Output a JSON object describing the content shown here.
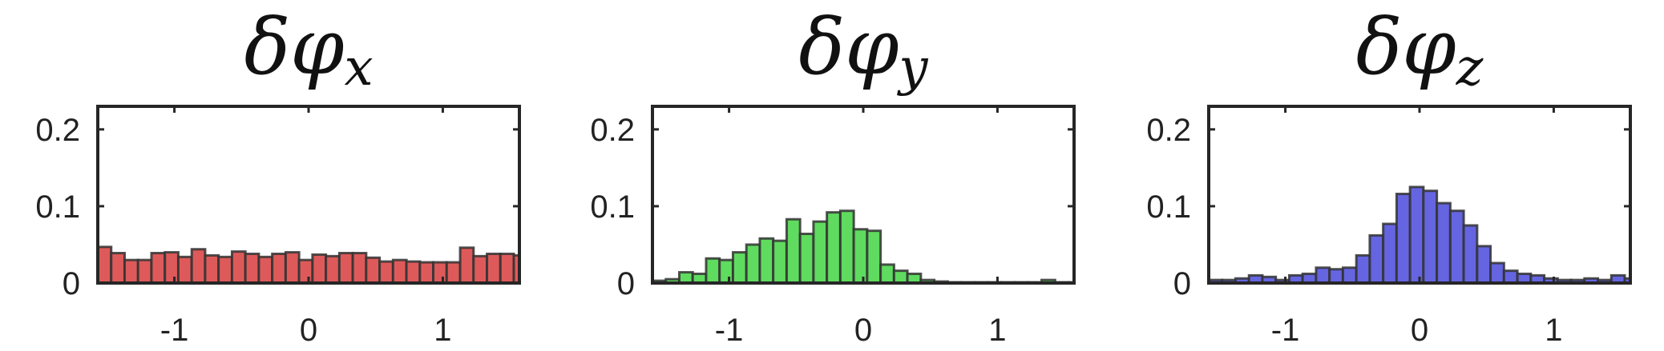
{
  "chart_data": [
    {
      "type": "bar",
      "title": "δφ",
      "title_subscript": "x",
      "color": "#de5a5a",
      "xlim": [
        -1.5708,
        1.5708
      ],
      "ylim": [
        0,
        0.23
      ],
      "xticks": [
        -1,
        0,
        1
      ],
      "xtick_labels": [
        "-1",
        "0",
        "1"
      ],
      "yticks": [
        0,
        0.1,
        0.2
      ],
      "ytick_labels": [
        "0",
        "0.1",
        "0.2"
      ],
      "bin_width": 0.1,
      "bin_start": -1.5708,
      "values": [
        0.047,
        0.039,
        0.03,
        0.03,
        0.039,
        0.04,
        0.034,
        0.044,
        0.036,
        0.034,
        0.041,
        0.038,
        0.034,
        0.038,
        0.04,
        0.03,
        0.037,
        0.035,
        0.039,
        0.039,
        0.033,
        0.028,
        0.03,
        0.028,
        0.027,
        0.027,
        0.027,
        0.046,
        0.035,
        0.038,
        0.038,
        0.036
      ]
    },
    {
      "type": "bar",
      "title": "δφ",
      "title_subscript": "y",
      "color": "#5fdb5f",
      "xlim": [
        -1.5708,
        1.5708
      ],
      "ylim": [
        0,
        0.23
      ],
      "xticks": [
        -1,
        0,
        1
      ],
      "xtick_labels": [
        "-1",
        "0",
        "1"
      ],
      "yticks": [
        0,
        0.1,
        0.2
      ],
      "ytick_labels": [
        "0",
        "0.1",
        "0.2"
      ],
      "bin_width": 0.1,
      "bin_start": -1.5708,
      "values": [
        0.003,
        0.005,
        0.014,
        0.012,
        0.032,
        0.03,
        0.04,
        0.05,
        0.058,
        0.055,
        0.083,
        0.064,
        0.08,
        0.092,
        0.094,
        0.07,
        0.068,
        0.024,
        0.016,
        0.012,
        0.004,
        0.002,
        0.001,
        0.001,
        0.001,
        0.001,
        0.001,
        0.001,
        0.001,
        0.004,
        0.001,
        0.001
      ]
    },
    {
      "type": "bar",
      "title": "δφ",
      "title_subscript": "z",
      "color": "#6565e2",
      "xlim": [
        -1.5708,
        1.5708
      ],
      "ylim": [
        0,
        0.23
      ],
      "xticks": [
        -1,
        0,
        1
      ],
      "xtick_labels": [
        "-1",
        "0",
        "1"
      ],
      "yticks": [
        0,
        0.1,
        0.2
      ],
      "ytick_labels": [
        "0",
        "0.1",
        "0.2"
      ],
      "bin_width": 0.1,
      "bin_start": -1.5708,
      "values": [
        0.004,
        0.004,
        0.006,
        0.01,
        0.008,
        0.004,
        0.01,
        0.012,
        0.02,
        0.018,
        0.02,
        0.036,
        0.062,
        0.077,
        0.116,
        0.125,
        0.12,
        0.104,
        0.094,
        0.075,
        0.048,
        0.026,
        0.016,
        0.012,
        0.01,
        0.006,
        0.004,
        0.004,
        0.006,
        0.004,
        0.01,
        0.006
      ]
    }
  ]
}
